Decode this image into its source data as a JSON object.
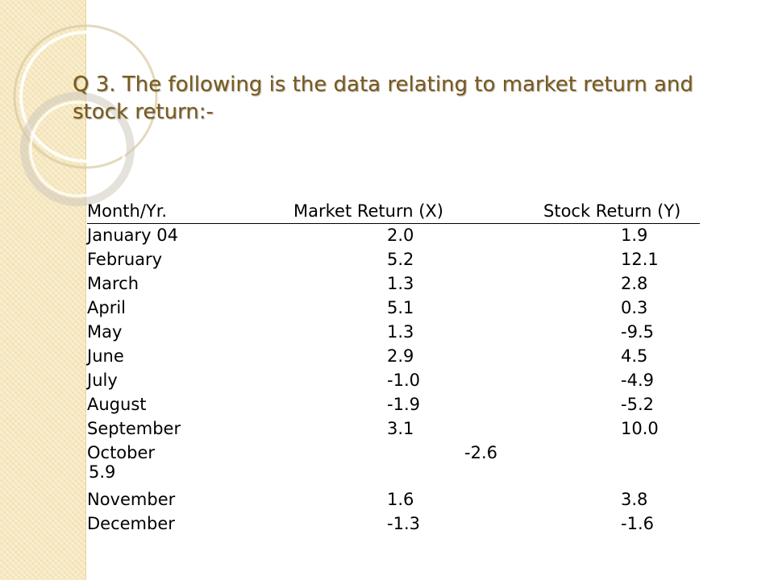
{
  "title": "Q 3. The following is the data relating to market return and stock return:-",
  "table": {
    "headers": {
      "month": "Month/Yr.",
      "market": "Market Return (X)",
      "stock": "Stock Return (Y)"
    },
    "rows": [
      {
        "month": "January 04",
        "x": "2.0",
        "y": "1.9"
      },
      {
        "month": "February",
        "x": "5.2",
        "y": "12.1"
      },
      {
        "month": "March",
        "x": "1.3",
        "y": "2.8"
      },
      {
        "month": "April",
        "x": "5.1",
        "y": "0.3"
      },
      {
        "month": "May",
        "x": "1.3",
        "y": "-9.5"
      },
      {
        "month": "June",
        "x": "2.9",
        "y": "4.5"
      },
      {
        "month": "July",
        "x": "-1.0",
        "y": "-4.9"
      },
      {
        "month": "August",
        "x": "-1.9",
        "y": "-5.2"
      },
      {
        "month": "September",
        "x": "3.1",
        "y": "10.0"
      },
      {
        "month": "October",
        "x": "-2.6",
        "y": "5.9"
      },
      {
        "month": "November",
        "x": "1.6",
        "y": "3.8"
      },
      {
        "month": "December",
        "x": "-1.3",
        "y": "-1.6"
      }
    ]
  },
  "colors": {
    "title": "#7a5a1b",
    "side_panel": "#f6e7bd"
  }
}
